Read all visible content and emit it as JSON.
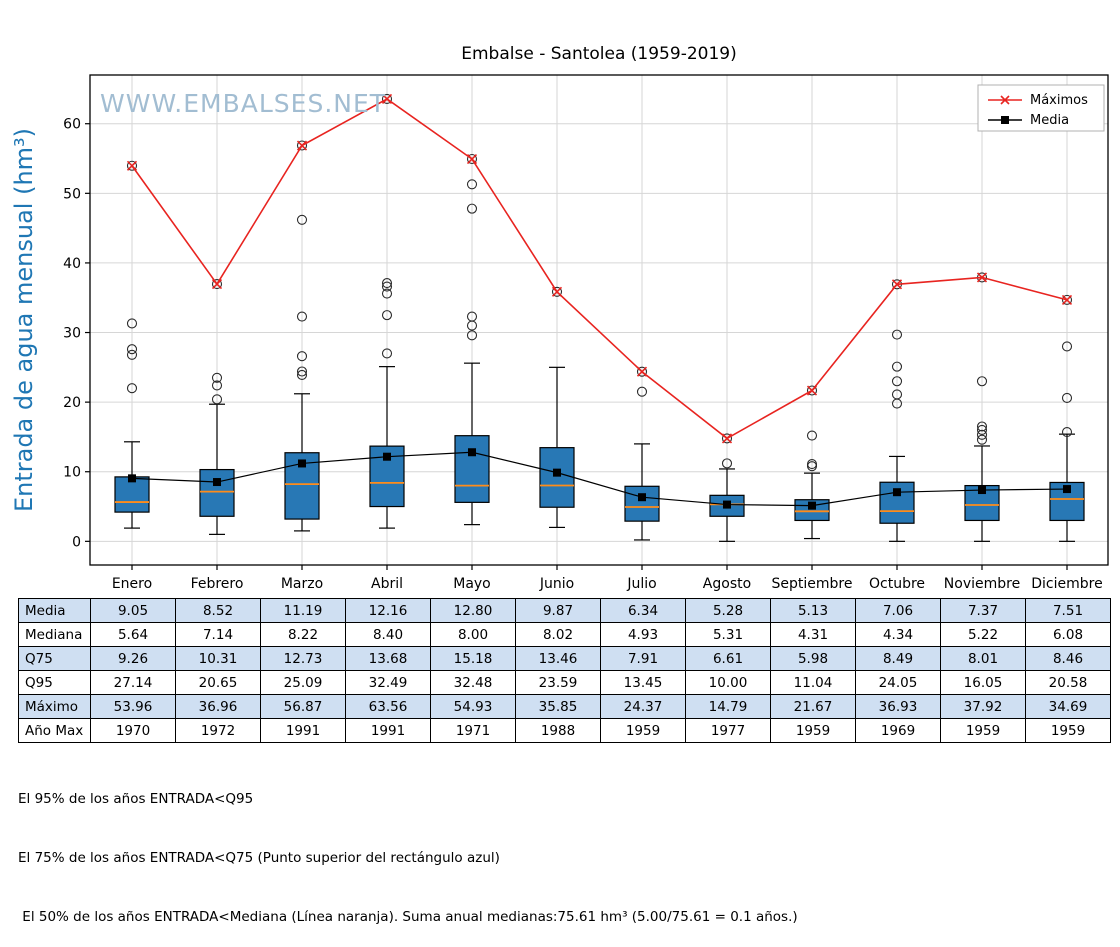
{
  "watermark": "WWW.EMBALSES.NET",
  "chart_data": {
    "type": "boxplot",
    "title": "Embalse - Santolea (1959-2019)",
    "ylabel": "Entrada de agua mensual (hm³)",
    "categories": [
      "Enero",
      "Febrero",
      "Marzo",
      "Abril",
      "Mayo",
      "Junio",
      "Julio",
      "Agosto",
      "Septiembre",
      "Octubre",
      "Noviembre",
      "Diciembre"
    ],
    "yticks": [
      0,
      10,
      20,
      30,
      40,
      50,
      60
    ],
    "ylim": [
      -3.4,
      67
    ],
    "grid": true,
    "legend_position": "top-right",
    "colors": {
      "box_fill": "#2878b5",
      "box_edge": "#000000",
      "median": "#ff8c1a",
      "max_line": "#e82420",
      "mean_line": "#000000",
      "outlier_edge": "#2a2a2a",
      "watermark": "#a2bdd2",
      "ylabel": "#1f77b4",
      "grid": "#d6d6d6",
      "table_row_highlight": "#cfdff2"
    },
    "series": [
      {
        "name": "Máximos",
        "marker": "x",
        "color": "#e82420",
        "values": [
          53.96,
          36.96,
          56.87,
          63.56,
          54.93,
          35.85,
          24.37,
          14.79,
          21.67,
          36.93,
          37.92,
          34.69
        ]
      },
      {
        "name": "Media",
        "marker": "square",
        "color": "#000000",
        "values": [
          9.05,
          8.52,
          11.19,
          12.16,
          12.8,
          9.87,
          6.34,
          5.28,
          5.13,
          7.06,
          7.37,
          7.51
        ]
      }
    ],
    "boxes": [
      {
        "month": "Enero",
        "q1": 4.2,
        "median": 5.64,
        "q3": 9.26,
        "whisker_low": 1.9,
        "whisker_high": 14.3,
        "outliers": [
          22.0,
          26.8,
          27.6,
          31.3,
          53.96
        ]
      },
      {
        "month": "Febrero",
        "q1": 3.6,
        "median": 7.14,
        "q3": 10.31,
        "whisker_low": 1.0,
        "whisker_high": 19.7,
        "outliers": [
          20.4,
          22.4,
          23.5,
          36.96
        ]
      },
      {
        "month": "Marzo",
        "q1": 3.2,
        "median": 8.22,
        "q3": 12.73,
        "whisker_low": 1.5,
        "whisker_high": 21.2,
        "outliers": [
          23.9,
          24.4,
          26.6,
          32.3,
          46.2,
          56.87
        ]
      },
      {
        "month": "Abril",
        "q1": 5.0,
        "median": 8.4,
        "q3": 13.68,
        "whisker_low": 1.9,
        "whisker_high": 25.1,
        "outliers": [
          27.0,
          32.5,
          35.6,
          36.6,
          37.1,
          63.56
        ]
      },
      {
        "month": "Mayo",
        "q1": 5.6,
        "median": 8.0,
        "q3": 15.18,
        "whisker_low": 2.4,
        "whisker_high": 25.6,
        "outliers": [
          29.6,
          31.0,
          32.3,
          47.8,
          51.3,
          54.93
        ]
      },
      {
        "month": "Junio",
        "q1": 4.9,
        "median": 8.02,
        "q3": 13.46,
        "whisker_low": 2.0,
        "whisker_high": 25.0,
        "outliers": [
          35.85
        ]
      },
      {
        "month": "Julio",
        "q1": 2.9,
        "median": 4.93,
        "q3": 7.91,
        "whisker_low": 0.2,
        "whisker_high": 14.0,
        "outliers": [
          21.5,
          24.37
        ]
      },
      {
        "month": "Agosto",
        "q1": 3.6,
        "median": 5.31,
        "q3": 6.61,
        "whisker_low": 0.0,
        "whisker_high": 10.4,
        "outliers": [
          11.2,
          14.79
        ]
      },
      {
        "month": "Septiembre",
        "q1": 3.0,
        "median": 4.31,
        "q3": 5.98,
        "whisker_low": 0.4,
        "whisker_high": 9.8,
        "outliers": [
          10.8,
          11.1,
          15.2,
          21.67
        ]
      },
      {
        "month": "Octubre",
        "q1": 2.6,
        "median": 4.34,
        "q3": 8.49,
        "whisker_low": 0.0,
        "whisker_high": 12.2,
        "outliers": [
          19.8,
          21.1,
          23.0,
          25.1,
          29.7,
          36.93
        ]
      },
      {
        "month": "Noviembre",
        "q1": 3.0,
        "median": 5.22,
        "q3": 8.01,
        "whisker_low": 0.0,
        "whisker_high": 13.7,
        "outliers": [
          14.6,
          15.3,
          16.0,
          16.5,
          23.0,
          37.92
        ]
      },
      {
        "month": "Diciembre",
        "q1": 3.0,
        "median": 6.08,
        "q3": 8.46,
        "whisker_low": 0.0,
        "whisker_high": 15.4,
        "outliers": [
          15.7,
          20.6,
          28.0,
          34.69
        ]
      }
    ]
  },
  "table": {
    "rows": [
      {
        "label": "Media",
        "values": [
          "9.05",
          "8.52",
          "11.19",
          "12.16",
          "12.80",
          "9.87",
          "6.34",
          "5.28",
          "5.13",
          "7.06",
          "7.37",
          "7.51"
        ]
      },
      {
        "label": "Mediana",
        "values": [
          "5.64",
          "7.14",
          "8.22",
          "8.40",
          "8.00",
          "8.02",
          "4.93",
          "5.31",
          "4.31",
          "4.34",
          "5.22",
          "6.08"
        ]
      },
      {
        "label": "Q75",
        "values": [
          "9.26",
          "10.31",
          "12.73",
          "13.68",
          "15.18",
          "13.46",
          "7.91",
          "6.61",
          "5.98",
          "8.49",
          "8.01",
          "8.46"
        ]
      },
      {
        "label": "Q95",
        "values": [
          "27.14",
          "20.65",
          "25.09",
          "32.49",
          "32.48",
          "23.59",
          "13.45",
          "10.00",
          "11.04",
          "24.05",
          "16.05",
          "20.58"
        ]
      },
      {
        "label": "Máximo",
        "values": [
          "53.96",
          "36.96",
          "56.87",
          "63.56",
          "54.93",
          "35.85",
          "24.37",
          "14.79",
          "21.67",
          "36.93",
          "37.92",
          "34.69"
        ]
      },
      {
        "label": "Año Max",
        "values": [
          "1970",
          "1972",
          "1991",
          "1991",
          "1971",
          "1988",
          "1959",
          "1977",
          "1959",
          "1969",
          "1959",
          "1959"
        ]
      }
    ]
  },
  "footnotes": [
    "El 95% de los años ENTRADA<Q95",
    "El 75% de los años ENTRADA<Q75 (Punto superior del rectángulo azul)",
    " El 50% de los años ENTRADA<Mediana (Línea naranja). Suma anual medianas:75.61 hm³ (5.00/75.61 = 0.1 años.)"
  ]
}
